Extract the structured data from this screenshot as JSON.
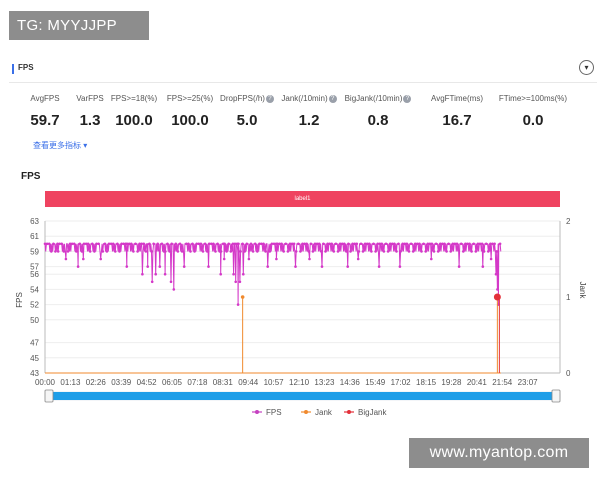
{
  "watermark_top": "TG: MYYJJPP",
  "watermark_bottom": "www.myantop.com",
  "panel": {
    "title": "FPS",
    "collapse_icon": "chevron-down-icon"
  },
  "metrics": [
    {
      "label": "AvgFPS",
      "value": "59.7",
      "help": false
    },
    {
      "label": "VarFPS",
      "value": "1.3",
      "help": false
    },
    {
      "label": "FPS>=18(%)",
      "value": "100.0",
      "help": false
    },
    {
      "label": "FPS>=25(%)",
      "value": "100.0",
      "help": false
    },
    {
      "label": "DropFPS(/h)",
      "value": "5.0",
      "help": true
    },
    {
      "label": "Jank(/10min)",
      "value": "1.2",
      "help": true
    },
    {
      "label": "BigJank(/10min)",
      "value": "0.8",
      "help": true
    },
    {
      "label": "AvgFTime(ms)",
      "value": "16.7",
      "help": false
    },
    {
      "label": "FTime>=100ms(%)",
      "value": "0.0",
      "help": false
    }
  ],
  "more_metrics_link": "查看更多指标 ▾",
  "chart_title": "FPS",
  "label_band_text": "label1",
  "chart_data": {
    "type": "line",
    "ylabel": "FPS",
    "y2label": "Jank",
    "y_ticks": [
      43,
      45,
      47,
      50,
      52,
      54,
      56,
      57,
      59,
      61,
      63
    ],
    "y2_ticks": [
      0,
      1,
      2
    ],
    "ylim": [
      43,
      63
    ],
    "y2lim": [
      0,
      2
    ],
    "x_ticks": [
      "00:00",
      "01:13",
      "02:26",
      "03:39",
      "04:52",
      "06:05",
      "07:18",
      "08:31",
      "09:44",
      "10:57",
      "12:10",
      "13:23",
      "14:36",
      "15:49",
      "17:02",
      "18:15",
      "19:28",
      "20:41",
      "21:54",
      "23:07"
    ],
    "xlim_seconds": [
      0,
      1480
    ],
    "series": [
      {
        "name": "FPS",
        "color": "#d438c8",
        "baseline_high": 60,
        "baseline_low": 59,
        "dips": [
          [
            38,
            59
          ],
          [
            60,
            58
          ],
          [
            95,
            57
          ],
          [
            110,
            58
          ],
          [
            160,
            58
          ],
          [
            235,
            57
          ],
          [
            280,
            56
          ],
          [
            295,
            57
          ],
          [
            308,
            55
          ],
          [
            318,
            56
          ],
          [
            330,
            57
          ],
          [
            345,
            56
          ],
          [
            362,
            55
          ],
          [
            370,
            54
          ],
          [
            400,
            57
          ],
          [
            470,
            57
          ],
          [
            505,
            56
          ],
          [
            515,
            58
          ],
          [
            542,
            56
          ],
          [
            548,
            55
          ],
          [
            555,
            52
          ],
          [
            560,
            55
          ],
          [
            570,
            56
          ],
          [
            586,
            58
          ],
          [
            640,
            57
          ],
          [
            665,
            58
          ],
          [
            720,
            57
          ],
          [
            760,
            58
          ],
          [
            796,
            57
          ],
          [
            870,
            57
          ],
          [
            900,
            58
          ],
          [
            960,
            57
          ],
          [
            1020,
            57
          ],
          [
            1110,
            58
          ],
          [
            1190,
            57
          ],
          [
            1258,
            57
          ],
          [
            1282,
            58
          ],
          [
            1296,
            56
          ],
          [
            1300,
            54
          ],
          [
            1303,
            52
          ]
        ]
      },
      {
        "name": "Jank",
        "color": "#f08a2e",
        "events": [
          [
            568,
            1
          ],
          [
            1300,
            1
          ]
        ]
      },
      {
        "name": "BigJank",
        "color": "#e3303a",
        "events": [
          [
            1300,
            1
          ]
        ]
      }
    ]
  },
  "legend": [
    {
      "name": "FPS",
      "color": "#c541c0"
    },
    {
      "name": "Jank",
      "color": "#f08a2e"
    },
    {
      "name": "BigJank",
      "color": "#e3303a"
    }
  ]
}
